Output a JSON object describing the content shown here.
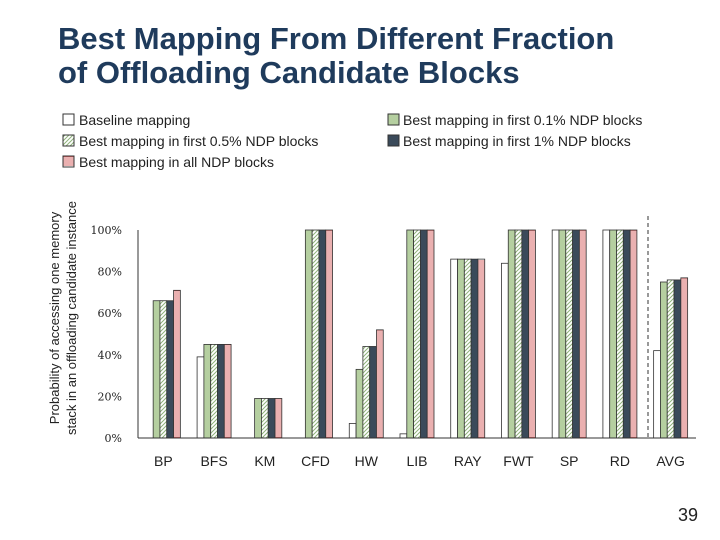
{
  "slide": {
    "title_line1": "Best Mapping From Different Fraction",
    "title_line2": "of Offloading Candidate Blocks",
    "page_number": "39"
  },
  "chart_data": {
    "type": "bar",
    "ylabel_line1": "Probability of accessing one memory",
    "ylabel_line2": "stack in an offloading candidate instance",
    "yticks": [
      "0%",
      "20%",
      "40%",
      "60%",
      "80%",
      "100%"
    ],
    "ylim": [
      0,
      100
    ],
    "categories": [
      "BP",
      "BFS",
      "KM",
      "CFD",
      "HW",
      "LIB",
      "RAY",
      "FWT",
      "SP",
      "RD",
      "AVG"
    ],
    "legend_position": "top",
    "grid": false,
    "series": [
      {
        "name": "Baseline mapping",
        "values": [
          0,
          39,
          0,
          0,
          7,
          2,
          86,
          84,
          100,
          100,
          42
        ]
      },
      {
        "name": "Best mapping in first 0.1% NDP blocks",
        "values": [
          66,
          45,
          19,
          100,
          33,
          100,
          86,
          100,
          100,
          100,
          75
        ]
      },
      {
        "name": "Best mapping in first 0.5% NDP blocks",
        "values": [
          66,
          45,
          19,
          100,
          44,
          100,
          86,
          100,
          100,
          100,
          76
        ]
      },
      {
        "name": "Best mapping in first 1% NDP blocks",
        "values": [
          66,
          45,
          19,
          100,
          44,
          100,
          86,
          100,
          100,
          100,
          76
        ]
      },
      {
        "name": "Best mapping in all NDP blocks",
        "values": [
          71,
          45,
          19,
          100,
          52,
          100,
          86,
          100,
          100,
          100,
          77
        ]
      }
    ],
    "colors": {
      "baseline": "#ffffff",
      "first_0_1": "#b5cfa0",
      "first_0_5_hatch": "#8fb27a",
      "first_1": "#3a4a5a",
      "all_hatch": "#d46060",
      "border": "#333333"
    }
  }
}
